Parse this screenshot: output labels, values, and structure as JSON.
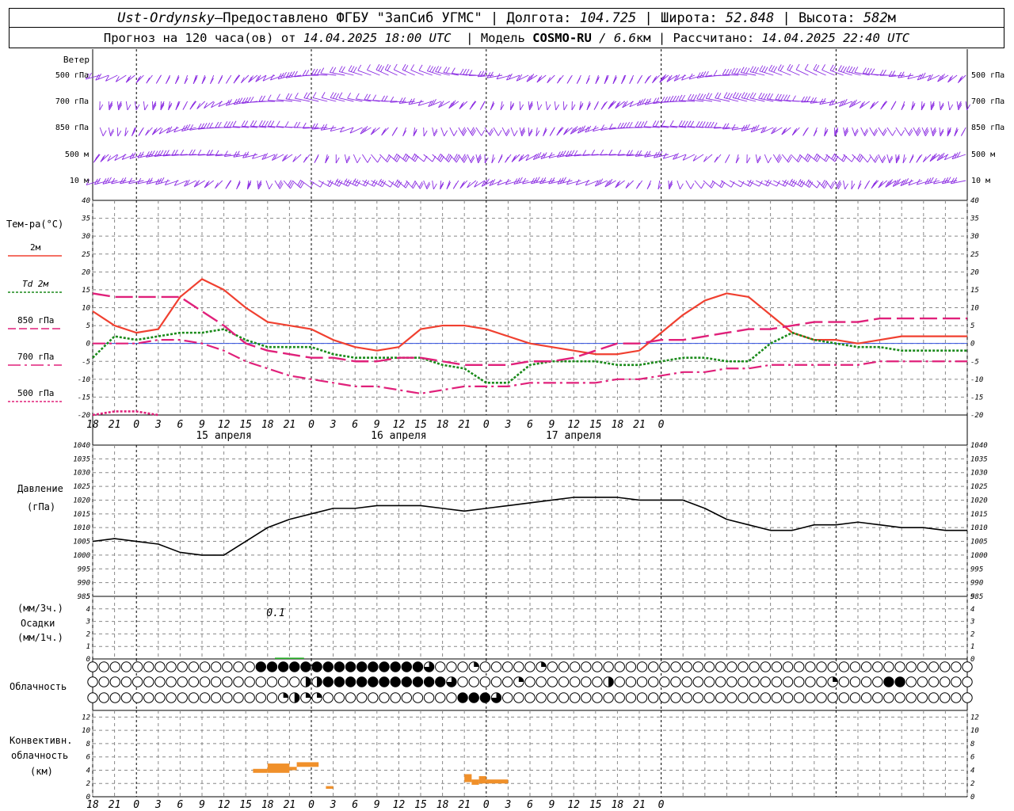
{
  "header": {
    "station": "Ust-Ordynsky",
    "sep": " — ",
    "provider": "Предоставлено ФГБУ \"ЗапСиб УГМС\"",
    "lon_label": "Долгота:",
    "lon": "104.725",
    "lat_label": "Широта:",
    "lat": "52.848",
    "alt_label": "Высота:",
    "alt": "582",
    "alt_unit": "м",
    "forecast_prefix": "Прогноз на 120 часа(ов) от",
    "forecast_from": "14.04.2025 18:00 UTC",
    "model_label": "Модель",
    "model": "COSMO-RU",
    "resolution": "/ 6.6",
    "resolution_unit": "км",
    "calc_label": "Рассчитано:",
    "calc": "14.04.2025 22:40 UTC"
  },
  "axis": {
    "hour_labels": [
      "18",
      "21",
      "0",
      "3",
      "6",
      "9",
      "12",
      "15",
      "18",
      "21",
      "0",
      "3",
      "6",
      "9",
      "12",
      "15",
      "18",
      "21",
      "0",
      "3",
      "6",
      "9",
      "12",
      "15",
      "18",
      "21",
      "0"
    ],
    "day_labels": [
      "15 апреля",
      "16 апреля",
      "17 апреля"
    ]
  },
  "wind": {
    "title": "Ветер",
    "levels": [
      "500 гПа",
      "700 гПа",
      "850 гПа",
      "500 м",
      "10  м"
    ]
  },
  "temp": {
    "title": "Тем-ра(°С)",
    "legend": [
      {
        "label": "2м",
        "color": "#f04030",
        "style": "solid"
      },
      {
        "label": "Td  2м",
        "color": "#1a8a1a",
        "style": "dotted"
      },
      {
        "label": "850 гПа",
        "color": "#e0207a",
        "style": "longdash"
      },
      {
        "label": "700 гПа",
        "color": "#e0207a",
        "style": "dashdot"
      },
      {
        "label": "500 гПа",
        "color": "#e0207a",
        "style": "dotted"
      }
    ]
  },
  "pressure": {
    "title": "Давление",
    "unit": "(гПа)"
  },
  "precip": {
    "unit_top": "(мм/3ч.)",
    "title": "Осадки",
    "unit_bottom": "(мм/1ч.)",
    "max_label": "0.1"
  },
  "cloud": {
    "title": "Облачность"
  },
  "conv": {
    "title1": "Конвективн.",
    "title2": "облачность",
    "unit": "(км)"
  },
  "chart_data": [
    {
      "type": "line",
      "title": "Тем-ра(°С)",
      "x_unit": "hours from 14.04.2025 18:00 UTC",
      "ylim": [
        -20,
        40
      ],
      "grid": true,
      "series": [
        {
          "name": "2м",
          "x": [
            0,
            3,
            6,
            9,
            12,
            15,
            18,
            21,
            24,
            27,
            30,
            33,
            36,
            39,
            42,
            45,
            48,
            51,
            54,
            57,
            60,
            63,
            66,
            69,
            72,
            75,
            78,
            81,
            84,
            87,
            90,
            93,
            96,
            99,
            102,
            105,
            108,
            111,
            114,
            117,
            120
          ],
          "values": [
            9,
            5,
            3,
            4,
            13,
            18,
            15,
            10,
            6,
            5,
            4,
            1,
            -1,
            -2,
            -1,
            4,
            5,
            5,
            4,
            2,
            0,
            -1,
            -2,
            -3,
            -3,
            -2,
            3,
            8,
            12,
            14,
            13,
            8,
            3,
            1,
            1,
            0,
            1,
            2,
            2,
            2,
            2
          ]
        },
        {
          "name": "Td  2м",
          "x": [
            0,
            3,
            6,
            9,
            12,
            15,
            18,
            21,
            24,
            27,
            30,
            33,
            36,
            39,
            42,
            45,
            48,
            51,
            54,
            57,
            60,
            63,
            66,
            69,
            72,
            75,
            78,
            81,
            84,
            87,
            90,
            93,
            96,
            99,
            102,
            105,
            108,
            111,
            114,
            117,
            120
          ],
          "values": [
            -4,
            2,
            1,
            2,
            3,
            3,
            4,
            1,
            -1,
            -1,
            -1,
            -3,
            -4,
            -4,
            -4,
            -4,
            -6,
            -7,
            -11,
            -11,
            -6,
            -5,
            -5,
            -5,
            -6,
            -6,
            -5,
            -4,
            -4,
            -5,
            -5,
            0,
            3,
            1,
            0,
            -1,
            -1,
            -2,
            -2,
            -2,
            -2
          ]
        },
        {
          "name": "850 гПа",
          "x": [
            0,
            3,
            6,
            9,
            12,
            15,
            18,
            21,
            24,
            27,
            30,
            33,
            36,
            39,
            42,
            45,
            48,
            51,
            54,
            57,
            60,
            63,
            66,
            69,
            72,
            75,
            78,
            81,
            84,
            87,
            90,
            93,
            96,
            99,
            102,
            105,
            108,
            111,
            114,
            117,
            120
          ],
          "values": [
            14,
            13,
            13,
            13,
            13,
            9,
            5,
            0,
            -2,
            -3,
            -4,
            -4,
            -5,
            -5,
            -4,
            -4,
            -5,
            -6,
            -6,
            -6,
            -5,
            -5,
            -4,
            -2,
            0,
            0,
            1,
            1,
            2,
            3,
            4,
            4,
            5,
            6,
            6,
            6,
            7,
            7,
            7,
            7,
            7
          ]
        },
        {
          "name": "700 гПа",
          "x": [
            0,
            3,
            6,
            9,
            12,
            15,
            18,
            21,
            24,
            27,
            30,
            33,
            36,
            39,
            42,
            45,
            48,
            51,
            54,
            57,
            60,
            63,
            66,
            69,
            72,
            75,
            78,
            81,
            84,
            87,
            90,
            93,
            96,
            99,
            102,
            105,
            108,
            111,
            114,
            117,
            120
          ],
          "values": [
            0,
            0,
            0,
            1,
            1,
            0,
            -2,
            -5,
            -7,
            -9,
            -10,
            -11,
            -12,
            -12,
            -13,
            -14,
            -13,
            -12,
            -12,
            -12,
            -11,
            -11,
            -11,
            -11,
            -10,
            -10,
            -9,
            -8,
            -8,
            -7,
            -7,
            -6,
            -6,
            -6,
            -6,
            -6,
            -5,
            -5,
            -5,
            -5,
            -5
          ]
        },
        {
          "name": "500 гПа",
          "x": [
            0,
            3,
            6,
            9
          ],
          "values": [
            -20,
            -19,
            -19,
            -20
          ]
        }
      ]
    },
    {
      "type": "line",
      "title": "Давление",
      "ylabel": "(гПа)",
      "x_unit": "hours from 14.04.2025 18:00 UTC",
      "ylim": [
        985,
        1040
      ],
      "grid": true,
      "series": [
        {
          "name": "Давление",
          "x": [
            0,
            3,
            6,
            9,
            12,
            15,
            18,
            21,
            24,
            27,
            30,
            33,
            36,
            39,
            42,
            45,
            48,
            51,
            54,
            57,
            60,
            63,
            66,
            69,
            72,
            75,
            78,
            81,
            84,
            87,
            90,
            93,
            96,
            99,
            102,
            105,
            108,
            111,
            114,
            117,
            120
          ],
          "values": [
            1005,
            1006,
            1005,
            1004,
            1001,
            1000,
            1000,
            1005,
            1010,
            1013,
            1015,
            1017,
            1017,
            1018,
            1018,
            1018,
            1017,
            1016,
            1017,
            1018,
            1019,
            1020,
            1021,
            1021,
            1021,
            1020,
            1020,
            1020,
            1017,
            1013,
            1011,
            1009,
            1009,
            1011,
            1011,
            1012,
            1011,
            1010,
            1010,
            1009,
            1009
          ]
        }
      ]
    },
    {
      "type": "bar",
      "title": "Осадки",
      "x_unit": "hours from 14.04.2025 18:00 UTC",
      "ylim": [
        0,
        5
      ],
      "series": [
        {
          "name": "Осадки",
          "x": [
            25,
            27
          ],
          "values": [
            0.1,
            0.1
          ]
        }
      ]
    },
    {
      "type": "bar",
      "title": "Конвективн. облачность",
      "ylabel": "(км)",
      "x_unit": "hours from 14.04.2025 18:00 UTC",
      "ylim": [
        0,
        13
      ],
      "segments": [
        {
          "x0": 22,
          "x1": 24,
          "base": 3.6,
          "top": 4.2
        },
        {
          "x0": 24,
          "x1": 27,
          "base": 3.6,
          "top": 5.0
        },
        {
          "x0": 27,
          "x1": 28,
          "base": 4.0,
          "top": 4.5
        },
        {
          "x0": 28,
          "x1": 31,
          "base": 4.5,
          "top": 5.2
        },
        {
          "x0": 32,
          "x1": 33,
          "base": 1.2,
          "top": 1.6
        },
        {
          "x0": 51,
          "x1": 52,
          "base": 2.2,
          "top": 3.4
        },
        {
          "x0": 52,
          "x1": 53,
          "base": 1.8,
          "top": 2.6
        },
        {
          "x0": 53,
          "x1": 54,
          "base": 2.0,
          "top": 3.1
        },
        {
          "x0": 54,
          "x1": 57,
          "base": 2.0,
          "top": 2.6
        }
      ]
    }
  ]
}
